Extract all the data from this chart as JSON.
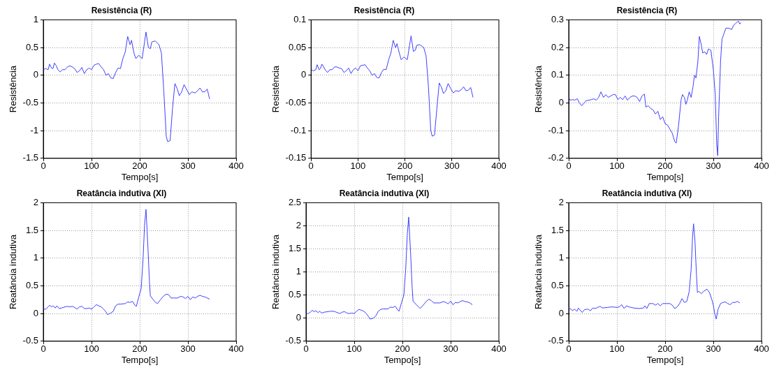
{
  "chart_data": [
    {
      "type": "line",
      "title": "Resistência (R)",
      "xlabel": "Tempo[s]",
      "ylabel": "Resistência",
      "xlim": [
        0,
        400
      ],
      "xticks": [
        0,
        100,
        200,
        300,
        400
      ],
      "ylim": [
        -1.5,
        1
      ],
      "yticks": [
        -1.5,
        -1,
        -0.5,
        0,
        0.5,
        1
      ],
      "grid": true,
      "legend": false,
      "marker": "none",
      "line_style": "solid",
      "x": [
        0,
        5,
        10,
        13,
        17,
        20,
        23,
        27,
        30,
        35,
        40,
        45,
        50,
        55,
        60,
        65,
        70,
        75,
        80,
        85,
        90,
        95,
        100,
        105,
        110,
        115,
        120,
        125,
        130,
        135,
        140,
        145,
        150,
        155,
        160,
        165,
        170,
        175,
        180,
        183,
        188,
        192,
        198,
        205,
        210,
        213,
        218,
        222,
        225,
        232,
        240,
        245,
        250,
        255,
        258,
        263,
        268,
        273,
        278,
        282,
        287,
        292,
        298,
        303,
        308,
        315,
        320,
        325,
        330,
        335,
        340,
        345
      ],
      "series": [
        {
          "color": "#4040ff",
          "values": [
            0.1,
            0.12,
            0.1,
            0.2,
            0.13,
            0.12,
            0.22,
            0.17,
            0.1,
            0.06,
            0.1,
            0.1,
            0.15,
            0.17,
            0.15,
            0.12,
            0.05,
            0.08,
            0.14,
            0.03,
            0.1,
            0.13,
            0.1,
            0.18,
            0.2,
            0.21,
            0.15,
            0.1,
            0.0,
            0.03,
            -0.05,
            -0.06,
            0.05,
            0.13,
            0.12,
            0.3,
            0.42,
            0.7,
            0.55,
            0.63,
            0.4,
            0.3,
            0.36,
            0.3,
            0.6,
            0.78,
            0.5,
            0.48,
            0.6,
            0.62,
            0.55,
            0.4,
            -0.3,
            -1.1,
            -1.2,
            -1.18,
            -0.6,
            -0.15,
            -0.25,
            -0.37,
            -0.3,
            -0.17,
            -0.27,
            -0.35,
            -0.3,
            -0.32,
            -0.28,
            -0.23,
            -0.3,
            -0.3,
            -0.25,
            -0.43
          ]
        }
      ]
    },
    {
      "type": "line",
      "title": "Resistência (R)",
      "xlabel": "Tempo[s]",
      "ylabel": "Resistência",
      "xlim": [
        0,
        400
      ],
      "xticks": [
        0,
        100,
        200,
        300,
        400
      ],
      "ylim": [
        -0.15,
        0.1
      ],
      "yticks": [
        -0.15,
        -0.1,
        -0.05,
        0,
        0.05,
        0.1
      ],
      "grid": true,
      "legend": false,
      "marker": "none",
      "line_style": "solid",
      "x": [
        0,
        5,
        10,
        13,
        17,
        20,
        23,
        27,
        30,
        35,
        40,
        45,
        50,
        55,
        60,
        65,
        70,
        75,
        80,
        85,
        90,
        95,
        100,
        105,
        110,
        115,
        120,
        125,
        130,
        135,
        140,
        145,
        150,
        155,
        160,
        165,
        170,
        175,
        180,
        183,
        188,
        192,
        198,
        205,
        210,
        213,
        218,
        222,
        225,
        232,
        240,
        245,
        250,
        255,
        258,
        263,
        268,
        273,
        278,
        282,
        287,
        292,
        298,
        303,
        308,
        315,
        320,
        325,
        330,
        335,
        340,
        345
      ],
      "series": [
        {
          "color": "#4040ff",
          "values": [
            0.01,
            0.008,
            0.01,
            0.019,
            0.01,
            0.012,
            0.02,
            0.015,
            0.01,
            0.005,
            0.01,
            0.01,
            0.015,
            0.015,
            0.013,
            0.012,
            0.005,
            0.008,
            0.013,
            0.003,
            0.01,
            0.013,
            0.008,
            0.017,
            0.018,
            0.019,
            0.013,
            0.008,
            0.0,
            0.003,
            -0.004,
            -0.005,
            0.005,
            0.011,
            0.01,
            0.027,
            0.04,
            0.063,
            0.05,
            0.057,
            0.04,
            0.028,
            0.033,
            0.028,
            0.055,
            0.071,
            0.043,
            0.045,
            0.054,
            0.055,
            0.05,
            0.035,
            -0.02,
            -0.1,
            -0.11,
            -0.108,
            -0.06,
            -0.014,
            -0.022,
            -0.033,
            -0.028,
            -0.015,
            -0.025,
            -0.032,
            -0.028,
            -0.029,
            -0.026,
            -0.021,
            -0.028,
            -0.027,
            -0.022,
            -0.04
          ]
        }
      ]
    },
    {
      "type": "line",
      "title": "Resistência (R)",
      "xlabel": "Tempo[s]",
      "ylabel": "Resistência",
      "xlim": [
        0,
        400
      ],
      "xticks": [
        0,
        100,
        200,
        300,
        400
      ],
      "ylim": [
        -0.2,
        0.3
      ],
      "yticks": [
        -0.2,
        -0.1,
        0,
        0.1,
        0.2,
        0.3
      ],
      "grid": true,
      "legend": false,
      "marker": "none",
      "line_style": "solid",
      "x": [
        0,
        3,
        8,
        12,
        18,
        22,
        27,
        32,
        36,
        42,
        47,
        52,
        57,
        62,
        67,
        72,
        77,
        82,
        87,
        92,
        97,
        102,
        107,
        112,
        117,
        122,
        127,
        132,
        137,
        142,
        147,
        152,
        157,
        160,
        165,
        170,
        175,
        180,
        185,
        190,
        195,
        200,
        205,
        210,
        215,
        220,
        223,
        228,
        233,
        236,
        240,
        243,
        246,
        250,
        254,
        258,
        261,
        264,
        268,
        271,
        275,
        278,
        282,
        286,
        290,
        295,
        300,
        304,
        307,
        309,
        311,
        315,
        318,
        322,
        326,
        332,
        338,
        342,
        348,
        352,
        355,
        357
      ],
      "series": [
        {
          "color": "#4040ff",
          "values": [
            0.02,
            0.01,
            0.012,
            0.01,
            0.015,
            0.0,
            -0.01,
            0.0,
            0.008,
            0.01,
            0.012,
            0.015,
            0.01,
            0.02,
            0.04,
            0.02,
            0.03,
            0.02,
            0.025,
            0.03,
            0.03,
            0.012,
            0.02,
            0.012,
            0.025,
            0.01,
            0.02,
            0.025,
            0.025,
            0.02,
            0.005,
            0.025,
            0.032,
            -0.015,
            -0.01,
            -0.02,
            -0.025,
            -0.04,
            -0.03,
            -0.06,
            -0.05,
            -0.075,
            -0.08,
            -0.095,
            -0.11,
            -0.14,
            -0.145,
            -0.08,
            0.01,
            0.03,
            0.02,
            -0.005,
            0.01,
            0.04,
            0.02,
            0.06,
            0.1,
            0.09,
            0.15,
            0.24,
            0.21,
            0.18,
            0.185,
            0.175,
            0.195,
            0.19,
            0.12,
            0.03,
            -0.15,
            -0.19,
            -0.05,
            0.15,
            0.23,
            0.25,
            0.27,
            0.27,
            0.265,
            0.28,
            0.29,
            0.295,
            0.285,
            0.29
          ]
        }
      ]
    },
    {
      "type": "line",
      "title": "Reatância indutiva (Xl)",
      "xlabel": "Tempo[s]",
      "ylabel": "Reatância indutiva",
      "xlim": [
        0,
        400
      ],
      "xticks": [
        0,
        100,
        200,
        300,
        400
      ],
      "ylim": [
        -0.5,
        2
      ],
      "yticks": [
        -0.5,
        0,
        0.5,
        1,
        1.5,
        2
      ],
      "grid": true,
      "legend": false,
      "marker": "none",
      "line_style": "solid",
      "x": [
        0,
        5,
        10,
        13,
        17,
        20,
        25,
        28,
        33,
        38,
        45,
        50,
        55,
        60,
        65,
        70,
        75,
        80,
        85,
        90,
        95,
        100,
        105,
        110,
        115,
        120,
        125,
        130,
        133,
        140,
        145,
        150,
        155,
        160,
        170,
        175,
        180,
        185,
        190,
        193,
        198,
        203,
        207,
        210,
        213,
        217,
        220,
        222,
        228,
        233,
        237,
        243,
        250,
        255,
        260,
        265,
        272,
        278,
        285,
        290,
        295,
        300,
        305,
        310,
        315,
        320,
        325,
        330,
        335,
        340,
        345
      ],
      "series": [
        {
          "color": "#4040ff",
          "values": [
            0.08,
            0.08,
            0.12,
            0.15,
            0.12,
            0.14,
            0.1,
            0.14,
            0.09,
            0.1,
            0.12,
            0.13,
            0.12,
            0.13,
            0.11,
            0.08,
            0.12,
            0.13,
            0.09,
            0.09,
            0.1,
            0.08,
            0.12,
            0.16,
            0.14,
            0.12,
            0.08,
            0.03,
            -0.02,
            0.01,
            0.04,
            0.14,
            0.17,
            0.17,
            0.18,
            0.21,
            0.2,
            0.22,
            0.15,
            0.13,
            0.3,
            0.45,
            1.0,
            1.6,
            1.88,
            1.2,
            0.6,
            0.32,
            0.25,
            0.2,
            0.18,
            0.25,
            0.32,
            0.35,
            0.34,
            0.28,
            0.28,
            0.28,
            0.31,
            0.3,
            0.27,
            0.31,
            0.25,
            0.3,
            0.28,
            0.31,
            0.33,
            0.31,
            0.3,
            0.28,
            0.26
          ]
        }
      ]
    },
    {
      "type": "line",
      "title": "Reatância indutiva (Xl)",
      "xlabel": "Tempo[s]",
      "ylabel": "Reatância indutiva",
      "xlim": [
        0,
        400
      ],
      "xticks": [
        0,
        100,
        200,
        300,
        400
      ],
      "ylim": [
        -0.5,
        2.5
      ],
      "yticks": [
        -0.5,
        0,
        0.5,
        1,
        1.5,
        2,
        2.5
      ],
      "grid": true,
      "legend": false,
      "marker": "none",
      "line_style": "solid",
      "x": [
        0,
        5,
        10,
        13,
        17,
        20,
        25,
        28,
        33,
        38,
        45,
        50,
        55,
        60,
        65,
        70,
        75,
        80,
        85,
        90,
        95,
        100,
        105,
        110,
        115,
        120,
        125,
        130,
        133,
        140,
        145,
        150,
        155,
        160,
        170,
        175,
        180,
        185,
        190,
        193,
        198,
        203,
        207,
        210,
        213,
        217,
        220,
        222,
        228,
        233,
        237,
        243,
        250,
        255,
        260,
        265,
        272,
        278,
        285,
        290,
        295,
        300,
        305,
        310,
        315,
        320,
        325,
        330,
        335,
        340,
        345
      ],
      "series": [
        {
          "color": "#4040ff",
          "values": [
            0.1,
            0.1,
            0.14,
            0.17,
            0.14,
            0.16,
            0.12,
            0.15,
            0.11,
            0.13,
            0.14,
            0.15,
            0.15,
            0.14,
            0.12,
            0.1,
            0.13,
            0.14,
            0.11,
            0.1,
            0.11,
            0.1,
            0.15,
            0.19,
            0.17,
            0.15,
            0.1,
            0.03,
            -0.02,
            0.0,
            0.05,
            0.15,
            0.19,
            0.2,
            0.2,
            0.24,
            0.23,
            0.26,
            0.18,
            0.15,
            0.33,
            0.5,
            1.1,
            1.8,
            2.19,
            1.4,
            0.7,
            0.37,
            0.3,
            0.25,
            0.21,
            0.28,
            0.37,
            0.41,
            0.38,
            0.33,
            0.33,
            0.33,
            0.36,
            0.34,
            0.31,
            0.37,
            0.29,
            0.34,
            0.33,
            0.36,
            0.38,
            0.36,
            0.35,
            0.33,
            0.29
          ]
        }
      ]
    },
    {
      "type": "line",
      "title": "Reatância indutiva (Xl)",
      "xlabel": "Tempo[s]",
      "ylabel": "Reatância indutiva",
      "xlim": [
        0,
        400
      ],
      "xticks": [
        0,
        100,
        200,
        300,
        400
      ],
      "ylim": [
        -0.5,
        2
      ],
      "yticks": [
        -0.5,
        0,
        0.5,
        1,
        1.5,
        2
      ],
      "grid": true,
      "legend": false,
      "marker": "none",
      "line_style": "solid",
      "x": [
        0,
        5,
        8,
        12,
        17,
        20,
        25,
        28,
        33,
        40,
        45,
        50,
        55,
        60,
        65,
        70,
        80,
        90,
        100,
        105,
        110,
        115,
        120,
        125,
        135,
        145,
        155,
        158,
        162,
        167,
        175,
        180,
        185,
        190,
        195,
        210,
        215,
        220,
        225,
        230,
        235,
        240,
        245,
        250,
        254,
        257,
        259,
        262,
        265,
        267,
        270,
        275,
        280,
        287,
        292,
        297,
        300,
        303,
        306,
        310,
        315,
        320,
        325,
        330,
        335,
        340,
        345,
        350,
        355
      ],
      "series": [
        {
          "color": "#4040ff",
          "values": [
            0.09,
            0.08,
            0.05,
            0.08,
            0.04,
            0.1,
            0.05,
            0.02,
            0.07,
            0.08,
            0.05,
            0.1,
            0.09,
            0.11,
            0.13,
            0.1,
            0.11,
            0.12,
            0.11,
            0.12,
            0.16,
            0.09,
            0.14,
            0.12,
            0.1,
            0.09,
            0.1,
            0.14,
            0.09,
            0.18,
            0.18,
            0.15,
            0.18,
            0.14,
            0.18,
            0.18,
            0.15,
            0.09,
            0.12,
            0.18,
            0.27,
            0.2,
            0.22,
            0.4,
            0.8,
            1.4,
            1.62,
            1.3,
            0.7,
            0.38,
            0.4,
            0.36,
            0.4,
            0.44,
            0.38,
            0.25,
            0.15,
            0.0,
            -0.1,
            0.08,
            0.18,
            0.2,
            0.21,
            0.18,
            0.16,
            0.2,
            0.2,
            0.22,
            0.19
          ]
        }
      ]
    }
  ]
}
